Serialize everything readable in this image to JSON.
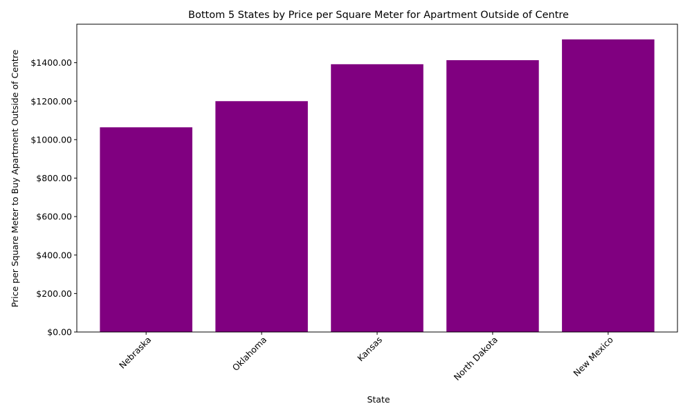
{
  "chart_data": {
    "type": "bar",
    "title": "Bottom 5 States by Price per Square Meter for Apartment Outside of Centre",
    "xlabel": "State",
    "ylabel": "Price per Square Meter to Buy Apartment Outside of Centre",
    "categories": [
      "Nebraska",
      "Oklahoma",
      "Kansas",
      "North Dakota",
      "New Mexico"
    ],
    "values": [
      1064,
      1200,
      1392,
      1413,
      1521
    ],
    "ylim": [
      0,
      1600
    ],
    "yticks": [
      0,
      200,
      400,
      600,
      800,
      1000,
      1200,
      1400
    ],
    "ytick_labels": [
      "$0.00",
      "$200.00",
      "$400.00",
      "$600.00",
      "$800.00",
      "$1000.00",
      "$1200.00",
      "$1400.00"
    ],
    "bar_color": "#800080",
    "grid": false,
    "legend": "none"
  }
}
